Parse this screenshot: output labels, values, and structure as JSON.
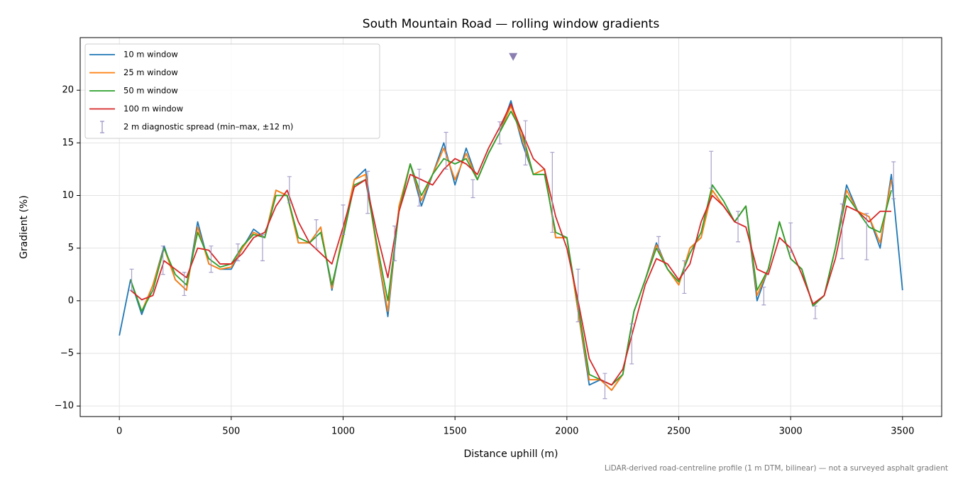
{
  "chart_data": {
    "type": "line",
    "title": "South Mountain Road — rolling window gradients",
    "xlabel": "Distance uphill (m)",
    "ylabel": "Gradient (%)",
    "footnote": "LiDAR-derived road-centreline profile (1 m DTM, bilinear) — not a surveyed asphalt gradient",
    "xlim": [
      -175,
      3675
    ],
    "ylim": [
      -11,
      25
    ],
    "xticks": [
      0,
      500,
      1000,
      1500,
      2000,
      2500,
      3000,
      3500
    ],
    "yticks": [
      {
        "value": -10,
        "label": "−10"
      },
      {
        "value": -5,
        "label": "−5"
      },
      0,
      5,
      10,
      15,
      20
    ],
    "grid": true,
    "legend": "upper left",
    "x": [
      0,
      50,
      100,
      150,
      200,
      250,
      300,
      350,
      400,
      450,
      500,
      550,
      600,
      650,
      700,
      750,
      800,
      850,
      900,
      950,
      1000,
      1050,
      1100,
      1150,
      1200,
      1250,
      1300,
      1350,
      1400,
      1450,
      1500,
      1550,
      1600,
      1650,
      1700,
      1750,
      1800,
      1850,
      1900,
      1950,
      2000,
      2050,
      2100,
      2150,
      2200,
      2250,
      2300,
      2350,
      2400,
      2450,
      2500,
      2550,
      2600,
      2650,
      2700,
      2750,
      2800,
      2850,
      2900,
      2950,
      3000,
      3050,
      3100,
      3150,
      3200,
      3250,
      3300,
      3350,
      3400,
      3450,
      3500
    ],
    "series": [
      {
        "name": "10 m window",
        "color": "#1f77b4",
        "values": [
          -3.3,
          2.0,
          -1.3,
          1.5,
          5.2,
          2.0,
          1.0,
          7.5,
          3.5,
          3.0,
          3.0,
          5.0,
          6.8,
          6.0,
          10.5,
          10.0,
          5.5,
          5.5,
          7.0,
          1.0,
          6.5,
          11.5,
          12.5,
          5.0,
          -1.5,
          9.0,
          13.0,
          9.0,
          12.0,
          15.0,
          11.0,
          14.5,
          11.5,
          14.0,
          16.0,
          19.0,
          15.0,
          12.0,
          12.5,
          6.0,
          6.0,
          -1.0,
          -8.0,
          -7.5,
          -8.5,
          -7.0,
          -1.0,
          2.0,
          5.5,
          3.0,
          1.5,
          5.0,
          6.0,
          10.5,
          9.0,
          7.5,
          9.0,
          0.0,
          3.0,
          7.5,
          4.0,
          3.0,
          -0.5,
          0.5,
          5.0,
          11.0,
          8.5,
          8.0,
          5.0,
          12.0,
          1.0
        ]
      },
      {
        "name": "25 m window",
        "color": "#ff7f0e",
        "values": [
          null,
          2.0,
          -1.0,
          1.5,
          5.0,
          2.0,
          1.0,
          7.0,
          3.5,
          3.0,
          3.2,
          5.0,
          6.5,
          6.0,
          10.5,
          10.0,
          5.5,
          5.5,
          7.0,
          1.2,
          6.5,
          11.5,
          12.0,
          5.0,
          -1.0,
          9.0,
          13.0,
          9.5,
          12.0,
          14.5,
          11.5,
          14.0,
          11.5,
          14.0,
          16.0,
          18.5,
          15.5,
          12.0,
          12.5,
          6.0,
          6.0,
          -1.0,
          -7.5,
          -7.5,
          -8.5,
          -7.0,
          -1.0,
          2.0,
          5.3,
          3.0,
          1.5,
          5.0,
          6.0,
          10.5,
          9.0,
          7.5,
          9.0,
          0.5,
          3.0,
          7.5,
          4.0,
          3.0,
          -0.5,
          0.5,
          5.0,
          10.5,
          8.5,
          8.0,
          5.5,
          11.5,
          null
        ]
      },
      {
        "name": "50 m window",
        "color": "#2ca02c",
        "values": [
          null,
          2.0,
          -1.0,
          1.0,
          5.0,
          2.5,
          1.5,
          6.5,
          4.0,
          3.2,
          3.5,
          5.2,
          6.3,
          6.0,
          10.0,
          10.0,
          6.0,
          5.5,
          6.5,
          1.5,
          6.0,
          11.0,
          11.5,
          5.5,
          0.0,
          8.5,
          13.0,
          10.0,
          12.0,
          13.5,
          13.0,
          13.5,
          11.5,
          14.0,
          16.0,
          18.0,
          16.0,
          12.0,
          12.0,
          6.5,
          6.0,
          -0.5,
          -7.0,
          -7.5,
          -8.0,
          -7.0,
          -1.0,
          2.0,
          5.0,
          3.0,
          1.8,
          4.5,
          6.5,
          11.0,
          9.5,
          7.5,
          9.0,
          1.0,
          3.0,
          7.5,
          4.0,
          3.0,
          -0.5,
          0.5,
          5.0,
          10.0,
          8.5,
          7.0,
          6.5,
          10.5,
          null
        ]
      },
      {
        "name": "100 m window",
        "color": "#d62728",
        "values": [
          null,
          1.0,
          0.1,
          0.5,
          3.8,
          3.0,
          2.2,
          5.0,
          4.8,
          3.5,
          3.5,
          4.5,
          6.0,
          6.5,
          9.0,
          10.5,
          7.5,
          5.5,
          4.5,
          3.5,
          7.0,
          10.8,
          11.5,
          6.5,
          2.2,
          8.5,
          12.0,
          11.5,
          11.0,
          12.5,
          13.5,
          13.0,
          12.0,
          14.5,
          16.5,
          18.7,
          16.0,
          13.5,
          12.5,
          8.0,
          5.0,
          0.0,
          -5.5,
          -7.5,
          -8.0,
          -6.5,
          -2.5,
          1.5,
          4.0,
          3.5,
          2.0,
          3.5,
          7.5,
          10.0,
          9.0,
          7.5,
          7.0,
          3.0,
          2.5,
          6.0,
          5.0,
          2.5,
          -0.3,
          0.5,
          4.0,
          9.0,
          8.5,
          7.5,
          8.5,
          8.5,
          null
        ]
      }
    ],
    "errorbars": {
      "name": "2 m diagnostic spread (min–max, ±12 m)",
      "color": "#9a8fbf",
      "x": [
        55,
        195,
        290,
        410,
        530,
        640,
        760,
        880,
        1000,
        1110,
        1230,
        1340,
        1460,
        1580,
        1700,
        1815,
        1935,
        2050,
        2170,
        2290,
        2410,
        2525,
        2645,
        2765,
        2880,
        3000,
        3110,
        3230,
        3340,
        3460
      ],
      "low": [
        1.0,
        2.5,
        0.5,
        2.7,
        3.8,
        3.8,
        9.3,
        5.0,
        6.3,
        8.3,
        3.8,
        9.0,
        12.5,
        9.8,
        14.9,
        12.9,
        6.5,
        -2.0,
        -9.3,
        -6.0,
        4.8,
        0.7,
        10.7,
        5.6,
        -0.4,
        4.6,
        -1.7,
        4.0,
        3.9,
        9.7
      ],
      "high": [
        3.0,
        5.2,
        2.7,
        5.2,
        5.4,
        6.3,
        11.8,
        7.7,
        9.1,
        12.3,
        7.1,
        12.5,
        16.0,
        11.5,
        17.0,
        17.1,
        14.1,
        3.0,
        -6.9,
        -2.2,
        6.1,
        3.8,
        14.2,
        8.5,
        1.3,
        7.4,
        -0.5,
        9.2,
        8.3,
        13.2
      ]
    },
    "peak_marker": {
      "x": 1760,
      "y": 23.2,
      "color": "#8a7fb0"
    }
  }
}
